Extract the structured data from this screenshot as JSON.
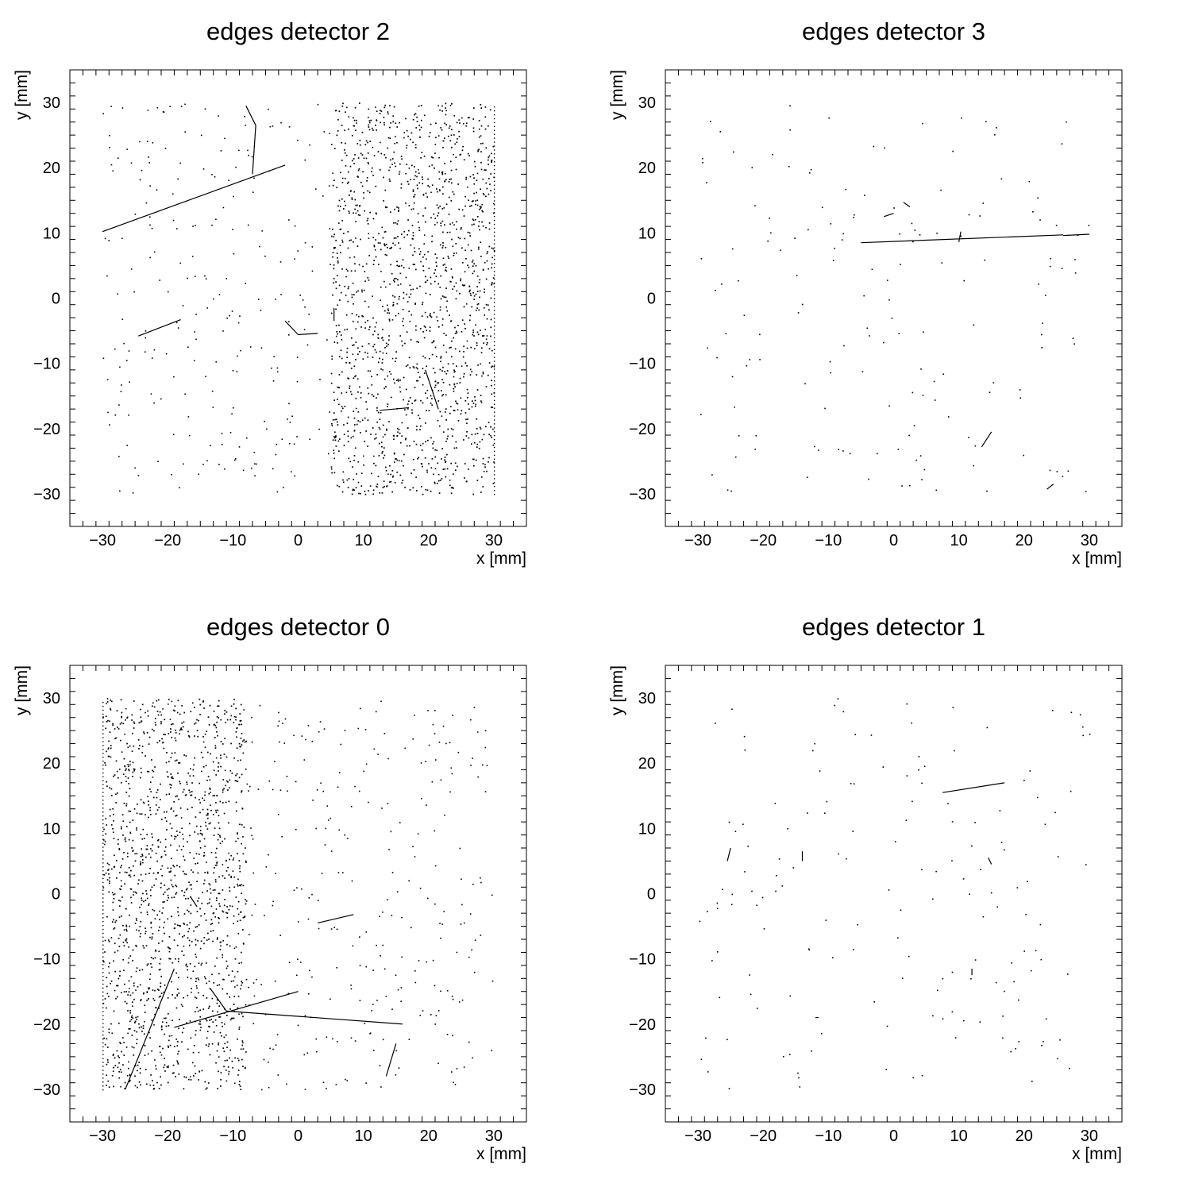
{
  "figure": {
    "layout": "2x2 grid",
    "background": "#ffffff",
    "marker_color": "#000000"
  },
  "chart_data": [
    {
      "type": "scatter",
      "title": "edges detector 2",
      "xlabel": "x [mm]",
      "ylabel": "y [mm]",
      "xlim": [
        -35,
        35
      ],
      "ylim": [
        -35,
        35
      ],
      "xticks": [
        -30,
        -20,
        -10,
        0,
        10,
        20,
        30
      ],
      "yticks": [
        -30,
        -20,
        -10,
        0,
        10,
        20,
        30
      ],
      "tick_labels_x": [
        "−30",
        "−20",
        "−10",
        "0",
        "10",
        "20",
        "30"
      ],
      "tick_labels_y": [
        "−30",
        "−20",
        "−10",
        "0",
        "10",
        "20",
        "30"
      ],
      "grid": false,
      "point_density": "sparse on left, dense on right (x > 5)",
      "density_region": {
        "x": [
          5,
          30
        ],
        "y": [
          -30,
          30
        ]
      },
      "tracks": [
        {
          "from": [
            -30,
            10.2
          ],
          "to": [
            -2,
            20.4
          ]
        },
        {
          "from": [
            -8,
            29.5
          ],
          "to": [
            -6.5,
            26.5
          ]
        },
        {
          "from": [
            -6.5,
            26.5
          ],
          "to": [
            -7,
            19
          ]
        },
        {
          "from": [
            -24.5,
            -5.8
          ],
          "to": [
            -18,
            -3.3
          ]
        },
        {
          "from": [
            -2,
            -3.5
          ],
          "to": [
            0,
            -5.6
          ]
        },
        {
          "from": [
            0,
            -5.6
          ],
          "to": [
            3,
            -5.4
          ]
        },
        {
          "from": [
            5.5,
            -1.5
          ],
          "to": [
            5.5,
            -3.5
          ]
        },
        {
          "from": [
            19.5,
            -11
          ],
          "to": [
            21.5,
            -17
          ]
        },
        {
          "from": [
            12.5,
            -17.2
          ],
          "to": [
            17,
            -16.8
          ]
        }
      ]
    },
    {
      "type": "scatter",
      "title": "edges detector 3",
      "xlabel": "x [mm]",
      "ylabel": "y [mm]",
      "xlim": [
        -35,
        35
      ],
      "ylim": [
        -35,
        35
      ],
      "xticks": [
        -30,
        -20,
        -10,
        0,
        10,
        20,
        30
      ],
      "yticks": [
        -30,
        -20,
        -10,
        0,
        10,
        20,
        30
      ],
      "tick_labels_x": [
        "−30",
        "−20",
        "−10",
        "0",
        "10",
        "20",
        "30"
      ],
      "tick_labels_y": [
        "−30",
        "−20",
        "−10",
        "0",
        "10",
        "20",
        "30"
      ],
      "grid": false,
      "point_density": "very sparse",
      "tracks": [
        {
          "from": [
            -5,
            8.5
          ],
          "to": [
            26,
            9.7
          ]
        },
        {
          "from": [
            26,
            9.6
          ],
          "to": [
            30,
            9.8
          ]
        },
        {
          "from": [
            10,
            8.6
          ],
          "to": [
            10.3,
            10.2
          ]
        },
        {
          "from": [
            -1.5,
            12.5
          ],
          "to": [
            0,
            13
          ]
        },
        {
          "from": [
            1.5,
            14.7
          ],
          "to": [
            2.5,
            14
          ]
        },
        {
          "from": [
            13.5,
            -22.8
          ],
          "to": [
            15,
            -20.5
          ]
        },
        {
          "from": [
            23.5,
            -29.3
          ],
          "to": [
            24.5,
            -28.5
          ]
        }
      ]
    },
    {
      "type": "scatter",
      "title": "edges detector 0",
      "xlabel": "x [mm]",
      "ylabel": "y [mm]",
      "xlim": [
        -35,
        35
      ],
      "ylim": [
        -35,
        35
      ],
      "xticks": [
        -30,
        -20,
        -10,
        0,
        10,
        20,
        30
      ],
      "yticks": [
        -30,
        -20,
        -10,
        0,
        10,
        20,
        30
      ],
      "tick_labels_x": [
        "−30",
        "−20",
        "−10",
        "0",
        "10",
        "20",
        "30"
      ],
      "tick_labels_y": [
        "−30",
        "−20",
        "−10",
        "0",
        "10",
        "20",
        "30"
      ],
      "grid": false,
      "point_density": "dense on left (x < -10), sparse on right",
      "density_region": {
        "x": [
          -30,
          -8
        ],
        "y": [
          -30,
          30
        ]
      },
      "tracks": [
        {
          "from": [
            -26.5,
            -30
          ],
          "to": [
            -19,
            -11.5
          ]
        },
        {
          "from": [
            -19,
            -20.5
          ],
          "to": [
            0,
            -15
          ]
        },
        {
          "from": [
            -11,
            -18
          ],
          "to": [
            16,
            -20
          ]
        },
        {
          "from": [
            -13.5,
            -14.5
          ],
          "to": [
            -11,
            -18
          ]
        },
        {
          "from": [
            3,
            -4.5
          ],
          "to": [
            8.5,
            -3.2
          ]
        },
        {
          "from": [
            13.5,
            -28
          ],
          "to": [
            15,
            -23
          ]
        },
        {
          "from": [
            -16.5,
            -0.5
          ],
          "to": [
            -15.5,
            -2
          ]
        }
      ]
    },
    {
      "type": "scatter",
      "title": "edges detector 1",
      "xlabel": "x [mm]",
      "ylabel": "y [mm]",
      "xlim": [
        -35,
        35
      ],
      "ylim": [
        -35,
        35
      ],
      "xticks": [
        -30,
        -20,
        -10,
        0,
        10,
        20,
        30
      ],
      "yticks": [
        -30,
        -20,
        -10,
        0,
        10,
        20,
        30
      ],
      "tick_labels_x": [
        "−30",
        "−20",
        "−10",
        "0",
        "10",
        "20",
        "30"
      ],
      "tick_labels_y": [
        "−30",
        "−20",
        "−10",
        "0",
        "10",
        "20",
        "30"
      ],
      "grid": false,
      "point_density": "very sparse",
      "tracks": [
        {
          "from": [
            7.5,
            15.5
          ],
          "to": [
            17,
            17
          ]
        },
        {
          "from": [
            -25.5,
            5
          ],
          "to": [
            -25,
            7
          ]
        },
        {
          "from": [
            -14,
            5
          ],
          "to": [
            -14,
            6.5
          ]
        },
        {
          "from": [
            12,
            -11.5
          ],
          "to": [
            12,
            -12.5
          ]
        },
        {
          "from": [
            -12,
            -19
          ],
          "to": [
            -11.5,
            -19
          ]
        },
        {
          "from": [
            14.5,
            5.5
          ],
          "to": [
            15,
            4.5
          ]
        }
      ]
    }
  ]
}
